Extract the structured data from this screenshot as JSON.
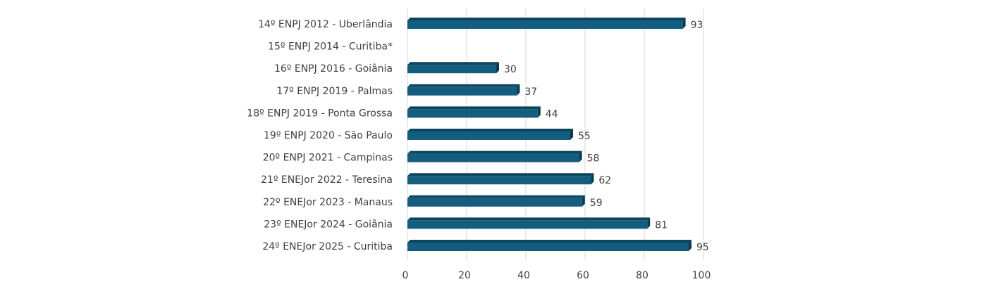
{
  "chart_data": {
    "type": "bar",
    "orientation": "horizontal",
    "title": "",
    "xlabel": "",
    "ylabel": "",
    "xlim": [
      0,
      100
    ],
    "ticks": [
      0,
      20,
      40,
      60,
      80,
      100
    ],
    "grid": true,
    "legend": "none",
    "bar_color": "#135e7f",
    "bar_top_color": "#0c4560",
    "bar_end_color": "#0a3a52",
    "categories": [
      "14º ENPJ 2012 - Uberlândia",
      "15º ENPJ 2014 - Curitiba*",
      "16º ENPJ 2016 - Goiânia",
      "17º ENPJ 2019 - Palmas",
      "18º ENPJ 2019 - Ponta Grossa",
      "19º ENPJ 2020 - São Paulo",
      "20º ENPJ 2021 - Campinas",
      "21º ENEJor 2022 - Teresina",
      "22º ENEJor 2023 - Manaus",
      "23º ENEJor 2024 - Goiânia",
      "24º ENEJor 2025 - Curitiba"
    ],
    "values": [
      93,
      null,
      30,
      37,
      44,
      55,
      58,
      62,
      59,
      81,
      95
    ]
  }
}
